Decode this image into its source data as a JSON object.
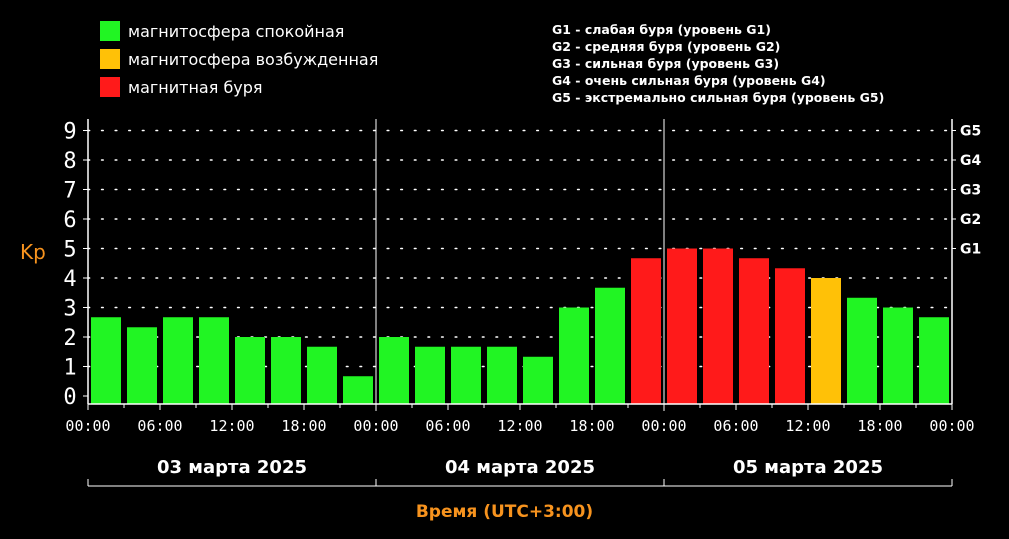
{
  "legend": [
    {
      "label": "магнитосфера спокойная",
      "color": "#21f523"
    },
    {
      "label": "магнитосфера возбужденная",
      "color": "#ffc107"
    },
    {
      "label": "магнитная буря",
      "color": "#ff1a1a"
    }
  ],
  "g_scale_legend": [
    "G1 - слабая буря (уровень G1)",
    "G2 - средняя буря (уровень G2)",
    "G3 - сильная буря (уровень G3)",
    "G4 - очень сильная буря (уровень G4)",
    "G5 - экстремально сильная буря (уровень G5)"
  ],
  "chart_data": {
    "type": "bar",
    "ylabel": "Kp",
    "xlabel": "Время (UTC+3:00)",
    "ylim": [
      0,
      9.5
    ],
    "yticks": [
      0,
      1,
      2,
      3,
      4,
      5,
      6,
      7,
      8,
      9
    ],
    "right_ticks": [
      {
        "label": "G1",
        "value": 5
      },
      {
        "label": "G2",
        "value": 6
      },
      {
        "label": "G3",
        "value": 7
      },
      {
        "label": "G4",
        "value": 8
      },
      {
        "label": "G5",
        "value": 9
      }
    ],
    "grid": true,
    "time_tick_labels": [
      "00:00",
      "06:00",
      "12:00",
      "18:00"
    ],
    "days": [
      {
        "label": "03 марта 2025",
        "values": [
          2.67,
          2.33,
          2.67,
          2.67,
          2.0,
          2.0,
          1.67,
          0.67
        ]
      },
      {
        "label": "04 марта 2025",
        "values": [
          2.0,
          1.67,
          1.67,
          1.67,
          1.33,
          3.0,
          3.67,
          4.67
        ]
      },
      {
        "label": "05 марта 2025",
        "values": [
          5.0,
          5.0,
          4.67,
          4.33,
          4.0,
          3.33,
          3.0,
          2.67
        ]
      }
    ],
    "colors": {
      "quiet": "#21f523",
      "active": "#ffc107",
      "storm": "#ff1a1a",
      "axis": "#ffffff",
      "accent": "#f7931e"
    }
  }
}
